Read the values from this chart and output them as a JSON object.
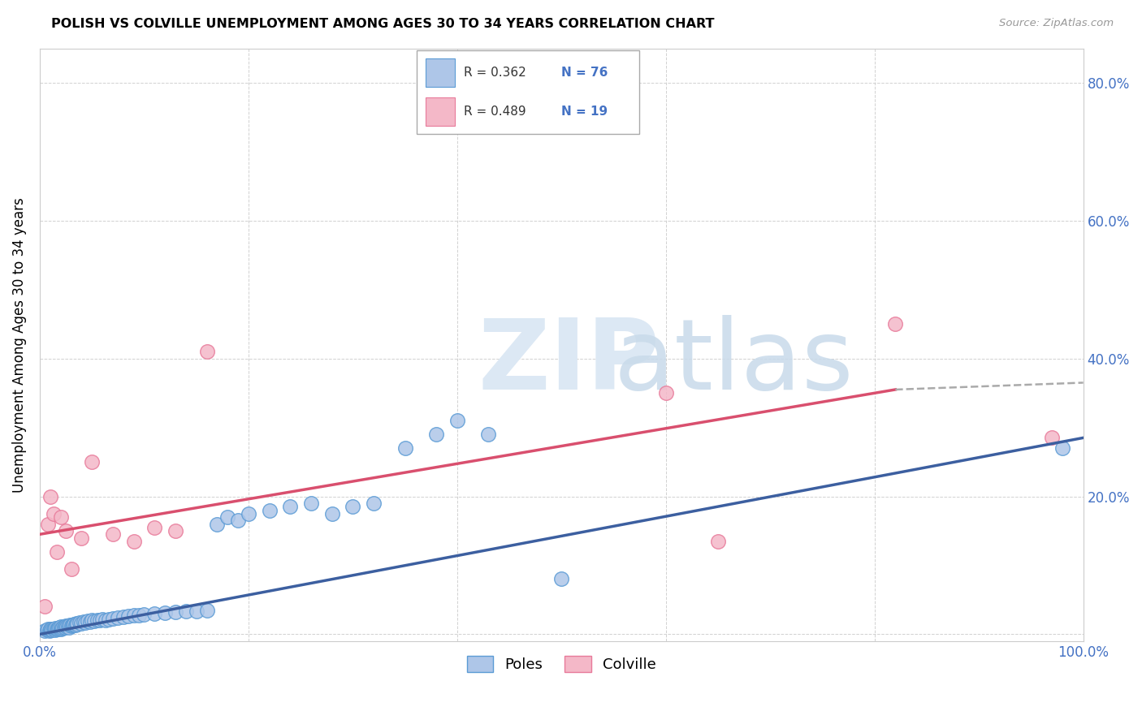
{
  "title": "POLISH VS COLVILLE UNEMPLOYMENT AMONG AGES 30 TO 34 YEARS CORRELATION CHART",
  "source": "Source: ZipAtlas.com",
  "ylabel": "Unemployment Among Ages 30 to 34 years",
  "xlim": [
    0,
    1.0
  ],
  "ylim": [
    -0.01,
    0.85
  ],
  "poles_color": "#aec6e8",
  "poles_edge_color": "#5b9bd5",
  "colville_color": "#f4b8c8",
  "colville_edge_color": "#e87a9a",
  "poles_line_color": "#3c5fa0",
  "colville_line_color": "#d94f6e",
  "poles_R": 0.362,
  "poles_N": 76,
  "colville_R": 0.489,
  "colville_N": 19,
  "poles_x": [
    0.005,
    0.007,
    0.008,
    0.009,
    0.01,
    0.01,
    0.011,
    0.012,
    0.013,
    0.014,
    0.015,
    0.015,
    0.016,
    0.017,
    0.018,
    0.019,
    0.02,
    0.02,
    0.021,
    0.022,
    0.023,
    0.024,
    0.025,
    0.026,
    0.027,
    0.028,
    0.029,
    0.03,
    0.031,
    0.032,
    0.033,
    0.034,
    0.035,
    0.036,
    0.038,
    0.04,
    0.042,
    0.044,
    0.046,
    0.048,
    0.05,
    0.052,
    0.055,
    0.058,
    0.06,
    0.063,
    0.066,
    0.07,
    0.075,
    0.08,
    0.085,
    0.09,
    0.095,
    0.1,
    0.11,
    0.12,
    0.13,
    0.14,
    0.15,
    0.16,
    0.17,
    0.18,
    0.19,
    0.2,
    0.22,
    0.24,
    0.26,
    0.28,
    0.3,
    0.32,
    0.35,
    0.38,
    0.4,
    0.43,
    0.5,
    0.98
  ],
  "poles_y": [
    0.005,
    0.006,
    0.007,
    0.005,
    0.006,
    0.008,
    0.007,
    0.006,
    0.008,
    0.007,
    0.006,
    0.009,
    0.008,
    0.007,
    0.009,
    0.01,
    0.008,
    0.011,
    0.009,
    0.01,
    0.011,
    0.01,
    0.012,
    0.011,
    0.012,
    0.01,
    0.013,
    0.012,
    0.014,
    0.013,
    0.015,
    0.014,
    0.016,
    0.015,
    0.017,
    0.016,
    0.018,
    0.017,
    0.019,
    0.018,
    0.02,
    0.019,
    0.021,
    0.02,
    0.022,
    0.021,
    0.022,
    0.023,
    0.024,
    0.025,
    0.026,
    0.027,
    0.028,
    0.029,
    0.03,
    0.031,
    0.032,
    0.033,
    0.034,
    0.035,
    0.16,
    0.17,
    0.165,
    0.175,
    0.18,
    0.185,
    0.19,
    0.175,
    0.185,
    0.19,
    0.27,
    0.29,
    0.31,
    0.29,
    0.08,
    0.27
  ],
  "colville_x": [
    0.005,
    0.008,
    0.01,
    0.013,
    0.016,
    0.02,
    0.025,
    0.03,
    0.04,
    0.05,
    0.07,
    0.09,
    0.11,
    0.13,
    0.16,
    0.6,
    0.65,
    0.82,
    0.97
  ],
  "colville_y": [
    0.04,
    0.16,
    0.2,
    0.175,
    0.12,
    0.17,
    0.15,
    0.095,
    0.14,
    0.25,
    0.145,
    0.135,
    0.155,
    0.15,
    0.41,
    0.35,
    0.135,
    0.45,
    0.285
  ],
  "poles_line_x": [
    0.0,
    1.0
  ],
  "poles_line_y": [
    0.0,
    0.285
  ],
  "colville_line_x": [
    0.0,
    0.82
  ],
  "colville_line_y": [
    0.145,
    0.355
  ],
  "dashed_line_x": [
    0.82,
    1.0
  ],
  "dashed_line_y": [
    0.355,
    0.365
  ]
}
